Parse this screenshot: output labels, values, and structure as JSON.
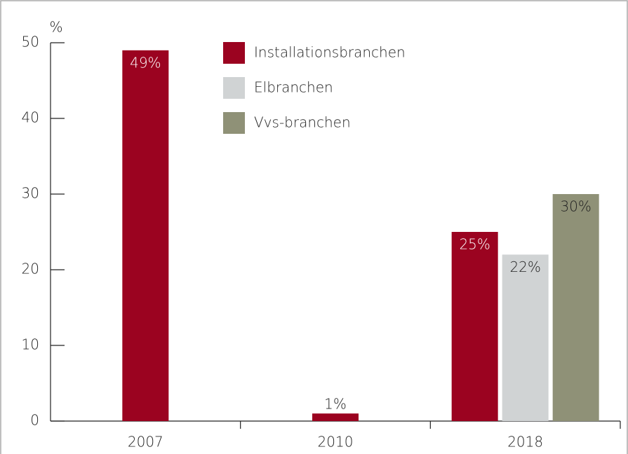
{
  "chart_data": {
    "type": "bar",
    "y_label": "%",
    "categories": [
      "2007",
      "2010",
      "2018"
    ],
    "series": [
      {
        "name": "Installationsbranchen",
        "color": "#9b0320",
        "values": [
          49,
          1,
          25
        ],
        "value_labels": [
          "49%",
          "1%",
          "25%"
        ]
      },
      {
        "name": "Elbranchen",
        "color": "#d0d3d4",
        "values": [
          null,
          null,
          22
        ],
        "value_labels": [
          null,
          null,
          "22%"
        ]
      },
      {
        "name": "Vvs-branchen",
        "color": "#8f9177",
        "values": [
          null,
          null,
          30
        ],
        "value_labels": [
          null,
          null,
          "30%"
        ]
      }
    ],
    "ylim": [
      0,
      50
    ],
    "yticks": [
      0,
      10,
      20,
      30,
      40,
      50
    ]
  }
}
